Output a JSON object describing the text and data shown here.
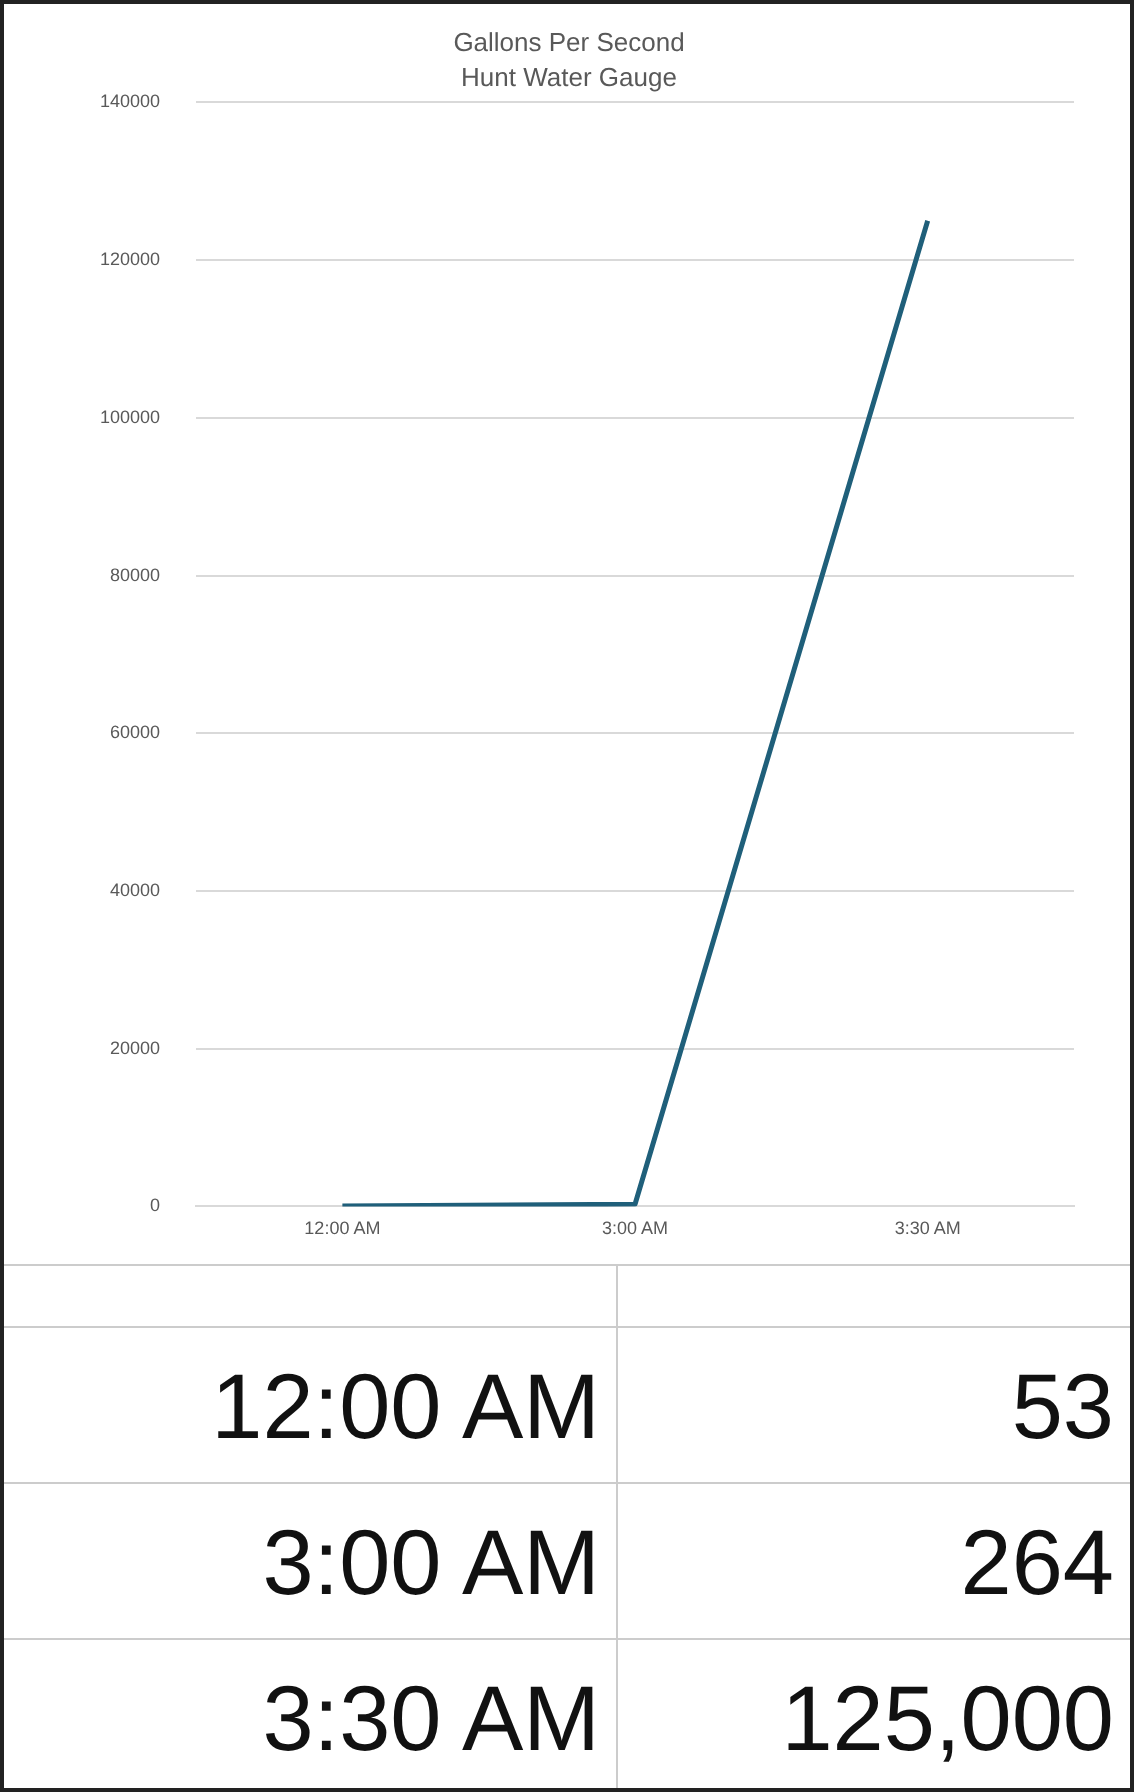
{
  "chart_data": {
    "type": "line",
    "title": "Gallons Per Second",
    "subtitle": "Hunt Water Gauge",
    "categories": [
      "12:00 AM",
      "3:00 AM",
      "3:30 AM"
    ],
    "series": [
      {
        "color": "#1f5f7a",
        "values": [
          53,
          264,
          125000
        ]
      }
    ],
    "value_labels": [
      "53",
      "264",
      "125,000"
    ],
    "ylim": [
      0,
      140000
    ],
    "yticks": [
      0,
      20000,
      40000,
      60000,
      80000,
      100000,
      120000,
      140000
    ],
    "grid": "y",
    "legend": false,
    "marker": "none",
    "line_style": "solid"
  }
}
